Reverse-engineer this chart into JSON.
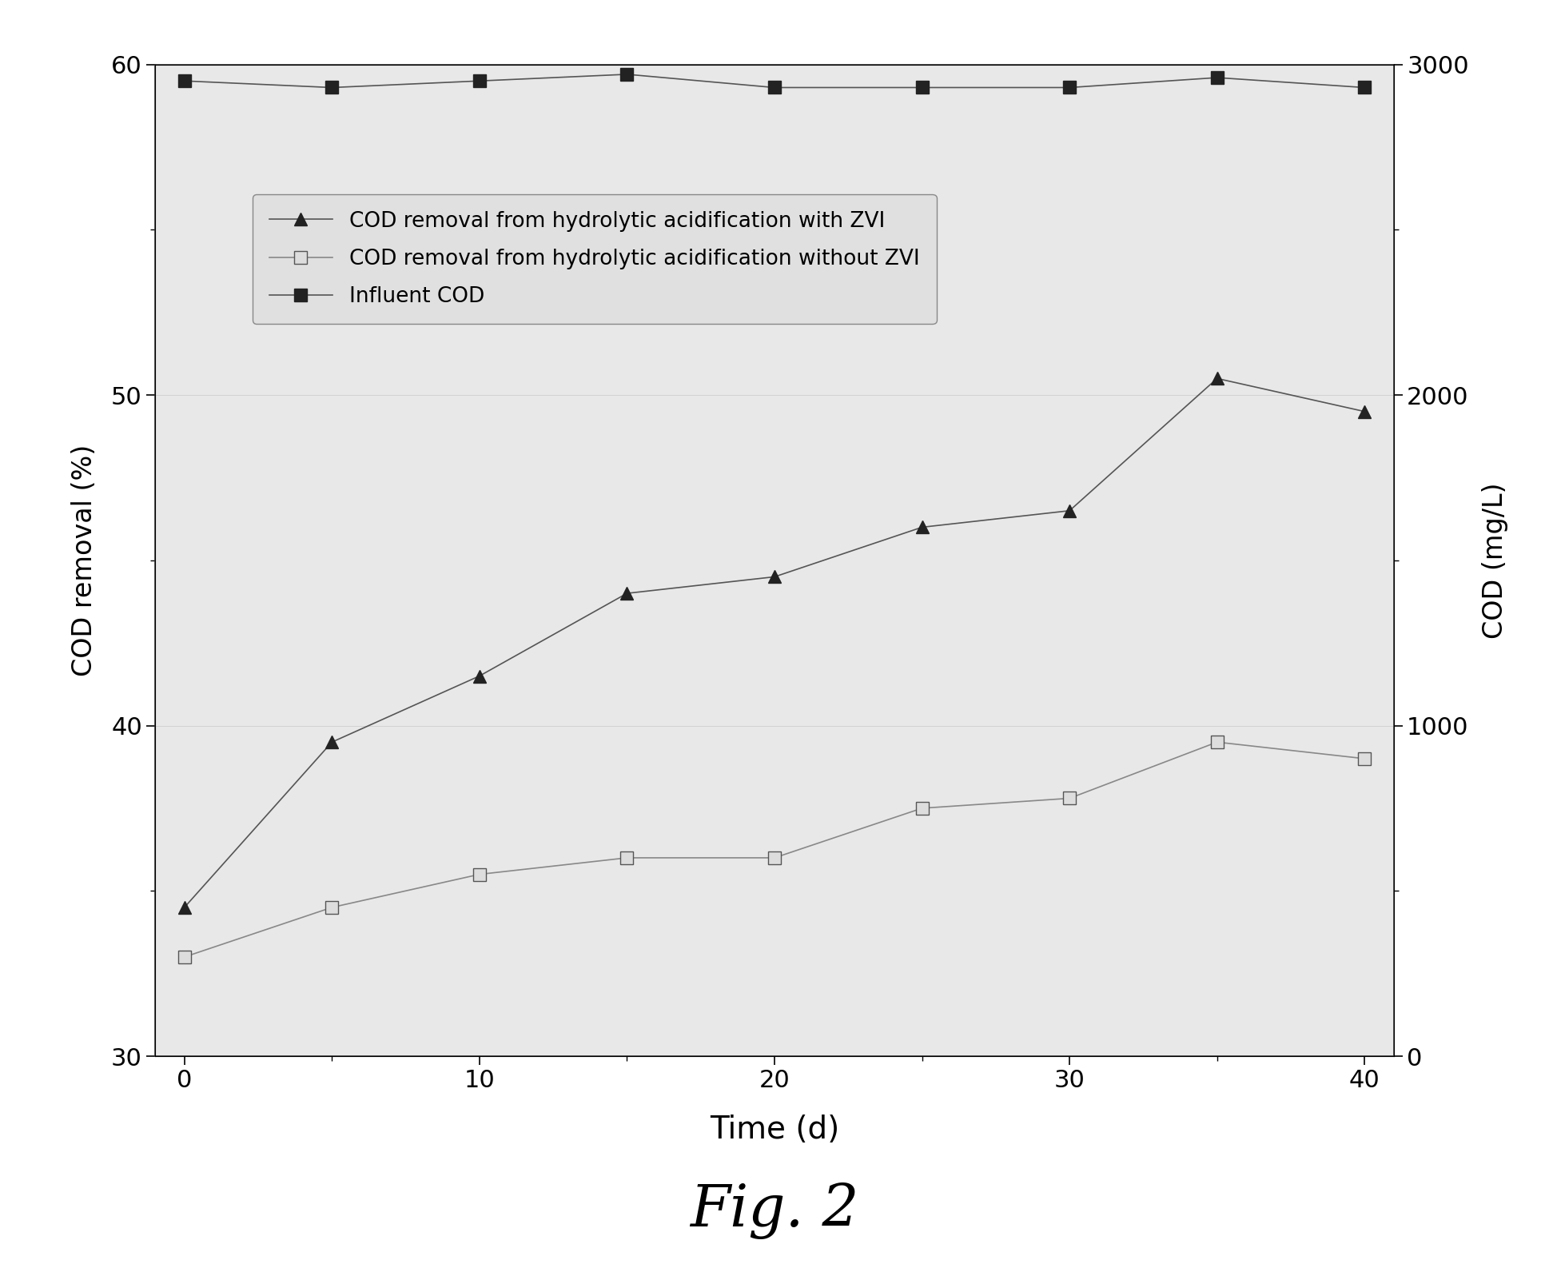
{
  "time_days": [
    0,
    5,
    10,
    15,
    20,
    25,
    30,
    35,
    40
  ],
  "cod_removal_zvi": [
    34.5,
    39.5,
    41.5,
    44.0,
    44.5,
    46.0,
    46.5,
    50.5,
    49.5
  ],
  "cod_removal_no_zvi": [
    33.0,
    34.5,
    35.5,
    36.0,
    36.0,
    37.5,
    37.8,
    39.5,
    39.0
  ],
  "influent_cod_right": [
    2950,
    2930,
    2950,
    2970,
    2930,
    2930,
    2930,
    2960,
    2930
  ],
  "ylabel_left": "COD removal (%)",
  "ylabel_right": "COD (mg/L)",
  "xlabel": "Time (d)",
  "fig_label": "Fig. 2",
  "ylim_left": [
    30,
    60
  ],
  "ylim_right": [
    0,
    3000
  ],
  "yticks_left": [
    30,
    40,
    50,
    60
  ],
  "yticks_right": [
    0,
    1000,
    2000,
    3000
  ],
  "xticks_major": [
    0,
    10,
    20,
    30,
    40
  ],
  "xticks_minor": [
    5,
    15,
    25,
    35
  ],
  "xlim": [
    -1,
    41
  ],
  "legend_labels": [
    "COD removal from hydrolytic acidification with ZVI",
    "COD removal from hydrolytic acidification without ZVI",
    "Influent COD"
  ],
  "fig_bg": "#ffffff",
  "plot_bg": "#e8e8e8",
  "line_color_dark": "#555555",
  "line_color_light": "#888888",
  "marker_fill_dark": "#222222",
  "marker_fill_open": "#dddddd",
  "marker_edge": "#555555"
}
